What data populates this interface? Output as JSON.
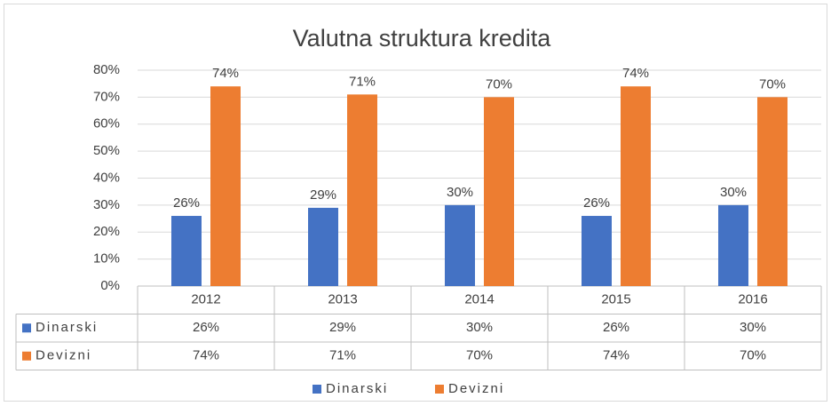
{
  "chart_data": {
    "type": "bar",
    "title": "Valutna struktura kredita",
    "categories": [
      "2012",
      "2013",
      "2014",
      "2015",
      "2016"
    ],
    "series": [
      {
        "name": "Dinarski",
        "color": "#4472c4",
        "values": [
          26,
          29,
          30,
          26,
          30
        ],
        "value_labels": [
          "26%",
          "29%",
          "30%",
          "26%",
          "30%"
        ]
      },
      {
        "name": "Devizni",
        "color": "#ed7d31",
        "values": [
          74,
          71,
          70,
          74,
          70
        ],
        "value_labels": [
          "74%",
          "71%",
          "70%",
          "74%",
          "70%"
        ]
      }
    ],
    "ylim": [
      0,
      80
    ],
    "yticks": [
      {
        "value": 0,
        "label": "0%"
      },
      {
        "value": 10,
        "label": "10%"
      },
      {
        "value": 20,
        "label": "20%"
      },
      {
        "value": 30,
        "label": "30%"
      },
      {
        "value": 40,
        "label": "40%"
      },
      {
        "value": 50,
        "label": "50%"
      },
      {
        "value": 60,
        "label": "60%"
      },
      {
        "value": 70,
        "label": "70%"
      },
      {
        "value": 80,
        "label": "80%"
      }
    ],
    "grid": true,
    "legend": "bottom",
    "data_table": true
  }
}
